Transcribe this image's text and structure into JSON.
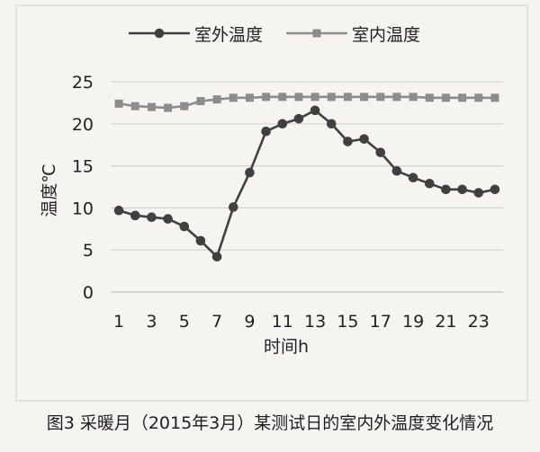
{
  "colors": {
    "background": "#f5f4f0",
    "grid": "#d3d3d0",
    "axis": "#bfbfbb",
    "border": "#cfcfcb",
    "text": "#222222"
  },
  "chart_data": {
    "type": "line",
    "caption": "图3 采暖月（2015年3月）某测试日的室内外温度变化情况",
    "xlabel": "时间h",
    "ylabel": "温度℃",
    "x": [
      1,
      2,
      3,
      4,
      5,
      6,
      7,
      8,
      9,
      10,
      11,
      12,
      13,
      14,
      15,
      16,
      17,
      18,
      19,
      20,
      21,
      22,
      23,
      24
    ],
    "xticks": [
      1,
      3,
      5,
      7,
      9,
      11,
      13,
      15,
      17,
      19,
      21,
      23
    ],
    "yticks": [
      0,
      5,
      10,
      15,
      20,
      25
    ],
    "ylim": [
      0,
      25
    ],
    "grid": true,
    "legend": "top",
    "series": [
      {
        "name": "室外温度",
        "marker": "circle",
        "color": "#404040",
        "values": [
          9.7,
          9.1,
          8.9,
          8.7,
          7.8,
          6.1,
          4.2,
          10.1,
          14.2,
          19.1,
          20.0,
          20.6,
          21.6,
          20.0,
          17.9,
          18.2,
          16.6,
          14.4,
          13.6,
          12.9,
          12.2,
          12.2,
          11.8,
          12.2
        ]
      },
      {
        "name": "室内温度",
        "marker": "square",
        "color": "#8c8c8a",
        "values": [
          22.4,
          22.1,
          22.0,
          21.9,
          22.1,
          22.7,
          22.9,
          23.1,
          23.1,
          23.2,
          23.2,
          23.2,
          23.2,
          23.2,
          23.2,
          23.2,
          23.2,
          23.2,
          23.2,
          23.1,
          23.1,
          23.1,
          23.1,
          23.1
        ]
      }
    ]
  }
}
